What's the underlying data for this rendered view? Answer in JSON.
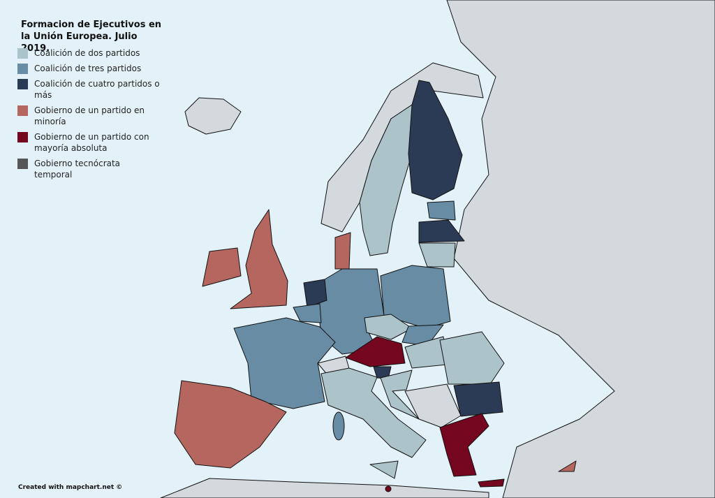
{
  "title": "Formacion de Ejecutivos en la Unión Europea. Julio 2019.",
  "legend": [
    {
      "label": "Coalición de dos partidos",
      "color": "#abc3c9"
    },
    {
      "label": "Coalición de tres partidos",
      "color": "#678ca4"
    },
    {
      "label": "Coalición de cuatro partidos o más",
      "color": "#2b3b55"
    },
    {
      "label": "Gobierno de un partido en minoría",
      "color": "#b5665f"
    },
    {
      "label": "Gobierno de un partido con mayoría absoluta",
      "color": "#75061f"
    },
    {
      "label": "Gobierno tecnócrata temporal",
      "color": "#565656"
    }
  ],
  "credit": "Created with mapchart.net ©"
}
